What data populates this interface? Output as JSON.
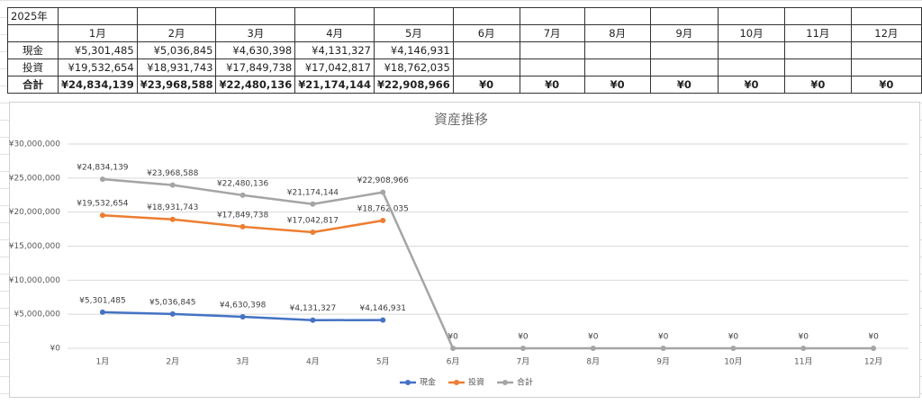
{
  "table": {
    "rows": [
      [
        "2025年",
        null,
        null,
        null,
        null,
        null,
        null,
        null,
        null,
        null,
        null,
        null,
        null
      ],
      [
        null,
        "1月",
        "2月",
        "3月",
        "4月",
        "5月",
        "6月",
        "7月",
        "8月",
        "9月",
        "10月",
        "11月",
        "12月"
      ],
      [
        "現金",
        "¥5,301,485",
        "¥5,036,845",
        "¥4,630,398",
        "¥4,131,327",
        "¥4,146,931",
        null,
        null,
        null,
        null,
        null,
        null,
        null
      ],
      [
        "投資",
        "¥19,532,654",
        "¥18,931,743",
        "¥17,849,738",
        "¥17,042,817",
        "¥18,762,035",
        null,
        null,
        null,
        null,
        null,
        null,
        null
      ],
      [
        "合計",
        "¥24,834,139",
        "¥23,968,588",
        "¥22,480,136",
        "¥21,174,144",
        "¥22,908,966",
        "¥0",
        "¥0",
        "¥0",
        "¥0",
        "¥0",
        "¥0",
        "¥0"
      ]
    ]
  },
  "chart_data": {
    "type": "line",
    "title": "資産推移",
    "categories": [
      "1月",
      "2月",
      "3月",
      "4月",
      "5月",
      "6月",
      "7月",
      "8月",
      "9月",
      "10月",
      "11月",
      "12月"
    ],
    "series": [
      {
        "name": "現金",
        "color": "#4472c4",
        "values": [
          5301485,
          5036845,
          4630398,
          4131327,
          4146931,
          null,
          null,
          null,
          null,
          null,
          null,
          null
        ],
        "value_labels": [
          "¥5,301,485",
          "¥5,036,845",
          "¥4,630,398",
          "¥4,131,327",
          "¥4,146,931",
          null,
          null,
          null,
          null,
          null,
          null,
          null
        ]
      },
      {
        "name": "投資",
        "color": "#ed7d31",
        "values": [
          19532654,
          18931743,
          17849738,
          17042817,
          18762035,
          null,
          null,
          null,
          null,
          null,
          null,
          null
        ],
        "value_labels": [
          "¥19,532,654",
          "¥18,931,743",
          "¥17,849,738",
          "¥17,042,817",
          "¥18,762,035",
          null,
          null,
          null,
          null,
          null,
          null,
          null
        ]
      },
      {
        "name": "合計",
        "color": "#a5a5a5",
        "values": [
          24834139,
          23968588,
          22480136,
          21174144,
          22908966,
          0,
          0,
          0,
          0,
          0,
          0,
          0
        ],
        "value_labels": [
          "¥24,834,139",
          "¥23,968,588",
          "¥22,480,136",
          "¥21,174,144",
          "¥22,908,966",
          "¥0",
          "¥0",
          "¥0",
          "¥0",
          "¥0",
          "¥0",
          "¥0"
        ]
      }
    ],
    "ylim": [
      0,
      30000000
    ],
    "yticks": [
      {
        "value": 0,
        "label": "¥0"
      },
      {
        "value": 5000000,
        "label": "¥5,000,000"
      },
      {
        "value": 10000000,
        "label": "¥10,000,000"
      },
      {
        "value": 15000000,
        "label": "¥15,000,000"
      },
      {
        "value": 20000000,
        "label": "¥20,000,000"
      },
      {
        "value": 25000000,
        "label": "¥25,000,000"
      },
      {
        "value": 30000000,
        "label": "¥30,000,000"
      }
    ],
    "grid": true,
    "legend": "bottom"
  }
}
